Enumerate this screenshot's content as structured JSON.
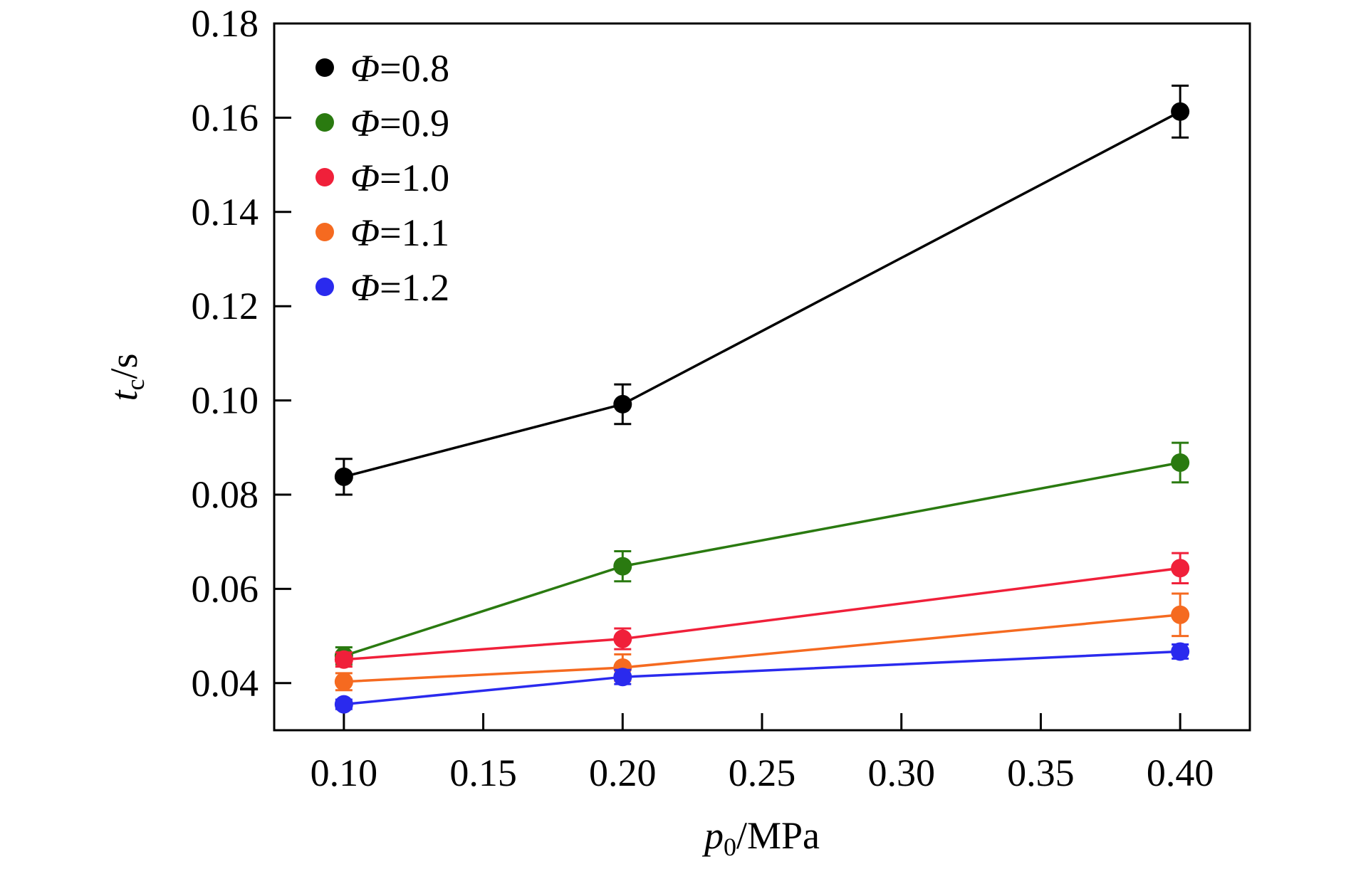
{
  "chart_data": {
    "type": "line",
    "x": [
      0.1,
      0.2,
      0.4
    ],
    "xlabel": {
      "var": "p",
      "sub": "0",
      "unit": "/MPa"
    },
    "ylabel": {
      "var": "t",
      "sub": "c",
      "unit": "/s"
    },
    "xlim": [
      0.075,
      0.425
    ],
    "ylim": [
      0.03,
      0.18
    ],
    "xticks": [
      "0.10",
      "0.15",
      "0.20",
      "0.25",
      "0.30",
      "0.35",
      "0.40"
    ],
    "xtick_values": [
      0.1,
      0.15,
      0.2,
      0.25,
      0.3,
      0.35,
      0.4
    ],
    "yticks": [
      "0.04",
      "0.06",
      "0.08",
      "0.10",
      "0.12",
      "0.14",
      "0.16",
      "0.18"
    ],
    "ytick_values": [
      0.04,
      0.06,
      0.08,
      0.1,
      0.12,
      0.14,
      0.16,
      0.18
    ],
    "legend_position": "top-left",
    "grid": false,
    "series": [
      {
        "name": "Φ=0.8",
        "color": "#000000",
        "values": [
          0.0838,
          0.0992,
          0.1613
        ],
        "errors": [
          0.0038,
          0.0042,
          0.0055
        ]
      },
      {
        "name": "Φ=0.9",
        "color": "#2a7a10",
        "values": [
          0.0458,
          0.0648,
          0.0868
        ],
        "errors": [
          0.0018,
          0.0032,
          0.0042
        ]
      },
      {
        "name": "Φ=1.0",
        "color": "#f0203a",
        "values": [
          0.045,
          0.0494,
          0.0644
        ],
        "errors": [
          0.0015,
          0.0022,
          0.0032
        ]
      },
      {
        "name": "Φ=1.1",
        "color": "#f56a20",
        "values": [
          0.0403,
          0.0433,
          0.0545
        ],
        "errors": [
          0.0018,
          0.0028,
          0.0045
        ]
      },
      {
        "name": "Φ=1.2",
        "color": "#2a2aee",
        "values": [
          0.0355,
          0.0413,
          0.0467
        ],
        "errors": [
          0.001,
          0.0015,
          0.0015
        ]
      }
    ]
  }
}
